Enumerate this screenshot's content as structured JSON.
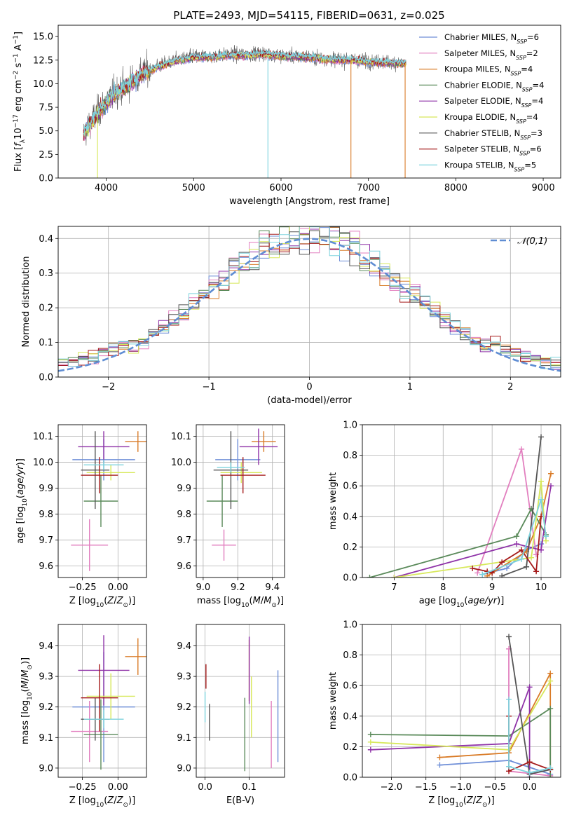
{
  "colors": [
    "#6f8fd8",
    "#e27fbf",
    "#d97b27",
    "#5a8a5a",
    "#8f33a8",
    "#d7e85a",
    "#555555",
    "#a51a1a",
    "#7dd3dd"
  ],
  "chart_data": [
    {
      "id": "spectrum",
      "type": "line",
      "title": "PLATE=2493, MJD=54115, FIBERID=0631, z=0.025",
      "xlabel": "wavelength [Angstrom, rest frame]",
      "ylabel": "Flux [f_λ 10^-17 erg cm^-2 s^-1 A^-1]",
      "xlim": [
        3450,
        9200
      ],
      "ylim": [
        0,
        16.2
      ],
      "xticks": [
        4000,
        5000,
        6000,
        7000,
        8000,
        9000
      ],
      "yticks": [
        0.0,
        2.5,
        5.0,
        7.5,
        10.0,
        12.5,
        15.0
      ],
      "legend_position": "top-right",
      "spectrum_range": [
        3740,
        7430
      ],
      "continuum_x": [
        3740,
        3800,
        3900,
        4000,
        4100,
        4200,
        4300,
        4400,
        4600,
        4800,
        5000,
        5200,
        5400,
        5600,
        5800,
        6000,
        6200,
        6400,
        6600,
        6800,
        7000,
        7200,
        7430
      ],
      "continuum_y": [
        4.5,
        5.5,
        6.8,
        8.0,
        9.0,
        9.5,
        10.2,
        11.0,
        11.8,
        12.4,
        12.8,
        12.8,
        13.0,
        13.0,
        13.1,
        12.9,
        12.8,
        12.7,
        12.5,
        12.5,
        12.3,
        12.2,
        12.1
      ],
      "series": [
        {
          "name": "Chabrier MILES, N_SSP=6"
        },
        {
          "name": "Salpeter MILES, N_SSP=2"
        },
        {
          "name": "Kroupa MILES, N_SSP=4"
        },
        {
          "name": "Chabrier ELODIE, N_SSP=4"
        },
        {
          "name": "Salpeter ELODIE, N_SSP=4"
        },
        {
          "name": "Kroupa ELODIE, N_SSP=4"
        },
        {
          "name": "Chabrier STELIB, N_SSP=3"
        },
        {
          "name": "Salpeter STELIB, N_SSP=6"
        },
        {
          "name": "Kroupa STELIB, N_SSP=5"
        }
      ],
      "legend_labels": [
        {
          "main": "Chabrier MILES, N",
          "sub": "SSP",
          "tail": "=6"
        },
        {
          "main": "Salpeter MILES, N",
          "sub": "SSP",
          "tail": "=2"
        },
        {
          "main": "Kroupa MILES, N",
          "sub": "SSP",
          "tail": "=4"
        },
        {
          "main": "Chabrier ELODIE, N",
          "sub": "SSP",
          "tail": "=4"
        },
        {
          "main": "Salpeter ELODIE, N",
          "sub": "SSP",
          "tail": "=4"
        },
        {
          "main": "Kroupa ELODIE, N",
          "sub": "SSP",
          "tail": "=4"
        },
        {
          "main": "Chabrier STELIB, N",
          "sub": "SSP",
          "tail": "=3"
        },
        {
          "main": "Salpeter STELIB, N",
          "sub": "SSP",
          "tail": "=6"
        },
        {
          "main": "Kroupa STELIB, N",
          "sub": "SSP",
          "tail": "=5"
        }
      ],
      "drops": [
        {
          "x": 5850,
          "series": 8
        },
        {
          "x": 6800,
          "series": 2
        },
        {
          "x": 7420,
          "series": 2
        },
        {
          "x": 3900,
          "series": 5
        }
      ]
    },
    {
      "id": "residuals",
      "type": "histogram",
      "xlabel": "(data-model)/error",
      "ylabel": "Normed distribution",
      "xlim": [
        -2.5,
        2.5
      ],
      "ylim": [
        0,
        0.435
      ],
      "xticks": [
        -2,
        -1,
        0,
        1,
        2
      ],
      "yticks": [
        0.0,
        0.1,
        0.2,
        0.3,
        0.4
      ],
      "grid": true,
      "bin_width": 0.1,
      "bin_start": -2.5,
      "reference_curve": {
        "name": "N(0,1)",
        "mean": 0,
        "sigma": 1,
        "style": "dashed"
      },
      "legend_label": "𝒩(0,1)",
      "legend_position": "top-right"
    },
    {
      "id": "age-vs-Z",
      "type": "errorbar",
      "xlabel": "Z [log10(Z/Z⊙)]",
      "ylabel": "age  [log10(age/yr)]",
      "xlim": [
        -0.42,
        0.2
      ],
      "ylim": [
        9.555,
        10.145
      ],
      "xticks": [
        -0.25,
        0.0
      ],
      "xticklabels": [
        "−0.25",
        "0.00"
      ],
      "yticks": [
        9.6,
        9.7,
        9.8,
        9.9,
        10.0,
        10.1
      ],
      "grid": true,
      "points": [
        {
          "x": -0.1,
          "xerr": 0.22,
          "y": 10.01,
          "yerr": 0.08,
          "series": 0
        },
        {
          "x": -0.2,
          "xerr": 0.13,
          "y": 9.68,
          "yerr": 0.1,
          "series": 1
        },
        {
          "x": 0.14,
          "xerr": 0.09,
          "y": 10.08,
          "yerr": 0.04,
          "series": 2
        },
        {
          "x": -0.12,
          "xerr": 0.12,
          "y": 9.85,
          "yerr": 0.1,
          "series": 3
        },
        {
          "x": -0.1,
          "xerr": 0.18,
          "y": 10.06,
          "yerr": 0.06,
          "series": 4
        },
        {
          "x": -0.05,
          "xerr": 0.17,
          "y": 9.96,
          "yerr": 0.03,
          "series": 5
        },
        {
          "x": -0.16,
          "xerr": 0.1,
          "y": 9.97,
          "yerr": 0.15,
          "series": 6
        },
        {
          "x": -0.13,
          "xerr": 0.13,
          "y": 9.95,
          "yerr": 0.07,
          "series": 7
        },
        {
          "x": -0.1,
          "xerr": 0.14,
          "y": 9.99,
          "yerr": 0.02,
          "series": 8
        }
      ]
    },
    {
      "id": "age-vs-mass",
      "type": "errorbar",
      "xlabel": "mass [log10(M/M⊙)]",
      "xlim": [
        8.96,
        9.47
      ],
      "ylim": [
        9.555,
        10.145
      ],
      "xticks": [
        9.0,
        9.2,
        9.4
      ],
      "xticklabels": [
        "9.0",
        "9.2",
        "9.4"
      ],
      "yticks": [
        9.6,
        9.7,
        9.8,
        9.9,
        10.0,
        10.1
      ],
      "grid": true,
      "points": [
        {
          "x": 9.2,
          "xerr": 0.13,
          "y": 10.01,
          "yerr": 0.08,
          "series": 0
        },
        {
          "x": 9.12,
          "xerr": 0.07,
          "y": 9.68,
          "yerr": 0.06,
          "series": 1
        },
        {
          "x": 9.35,
          "xerr": 0.07,
          "y": 10.08,
          "yerr": 0.04,
          "series": 2
        },
        {
          "x": 9.11,
          "xerr": 0.09,
          "y": 9.85,
          "yerr": 0.1,
          "series": 3
        },
        {
          "x": 9.32,
          "xerr": 0.11,
          "y": 10.06,
          "yerr": 0.07,
          "series": 4
        },
        {
          "x": 9.22,
          "xerr": 0.12,
          "y": 9.96,
          "yerr": 0.04,
          "series": 5
        },
        {
          "x": 9.16,
          "xerr": 0.1,
          "y": 9.97,
          "yerr": 0.15,
          "series": 6
        },
        {
          "x": 9.23,
          "xerr": 0.13,
          "y": 9.95,
          "yerr": 0.07,
          "series": 7
        },
        {
          "x": 9.16,
          "xerr": 0.08,
          "y": 9.98,
          "yerr": 0.02,
          "series": 8
        }
      ]
    },
    {
      "id": "mass-weight-vs-age",
      "type": "line",
      "xlabel": "age  [log10(age/yr)]",
      "ylabel": "mass weight",
      "xlim": [
        6.35,
        10.4
      ],
      "ylim": [
        0,
        1
      ],
      "xticks": [
        7,
        8,
        9,
        10
      ],
      "yticks": [
        0.0,
        0.2,
        0.4,
        0.6,
        0.8,
        1.0
      ],
      "grid": true,
      "series": [
        {
          "x": [
            8.8,
            9.3,
            9.7,
            10.0
          ],
          "y": [
            0.02,
            0.06,
            0.18,
            0.22
          ],
          "series": 0
        },
        {
          "x": [
            8.7,
            9.6,
            9.9
          ],
          "y": [
            0.03,
            0.84,
            0.15
          ],
          "series": 1
        },
        {
          "x": [
            8.9,
            9.7,
            10.0,
            10.2
          ],
          "y": [
            0.01,
            0.17,
            0.4,
            0.68
          ],
          "series": 2
        },
        {
          "x": [
            6.5,
            9.5,
            9.8,
            10.1
          ],
          "y": [
            0.0,
            0.27,
            0.45,
            0.28
          ],
          "series": 3
        },
        {
          "x": [
            7.0,
            9.5,
            10.0,
            10.2
          ],
          "y": [
            0.0,
            0.22,
            0.18,
            0.6
          ],
          "series": 4
        },
        {
          "x": [
            7.0,
            9.8,
            10.0,
            10.1
          ],
          "y": [
            0.0,
            0.13,
            0.63,
            0.24
          ],
          "series": 5
        },
        {
          "x": [
            9.2,
            9.7,
            10.0
          ],
          "y": [
            0.01,
            0.07,
            0.92
          ],
          "series": 6
        },
        {
          "x": [
            8.6,
            8.9,
            9.0,
            9.2,
            9.6,
            9.9,
            10.0
          ],
          "y": [
            0.06,
            0.04,
            0.03,
            0.1,
            0.18,
            0.04,
            0.4
          ],
          "series": 7
        },
        {
          "x": [
            8.8,
            9.6,
            10.0,
            10.1
          ],
          "y": [
            0.02,
            0.12,
            0.51,
            0.27
          ],
          "series": 8
        }
      ]
    },
    {
      "id": "mass-vs-Z",
      "type": "errorbar",
      "xlabel": "Z [log10(Z/Z⊙)]",
      "ylabel": "mass [log10(M/M⊙)]",
      "xlim": [
        -0.42,
        0.2
      ],
      "ylim": [
        8.97,
        9.47
      ],
      "xticks": [
        -0.25,
        0.0
      ],
      "xticklabels": [
        "−0.25",
        "0.00"
      ],
      "yticks": [
        9.0,
        9.1,
        9.2,
        9.3,
        9.4
      ],
      "grid": true,
      "points": [
        {
          "x": -0.1,
          "xerr": 0.22,
          "y": 9.2,
          "yerr": 0.18,
          "series": 0
        },
        {
          "x": -0.2,
          "xerr": 0.13,
          "y": 9.12,
          "yerr": 0.1,
          "series": 1
        },
        {
          "x": 0.14,
          "xerr": 0.09,
          "y": 9.365,
          "yerr": 0.06,
          "series": 2
        },
        {
          "x": -0.12,
          "xerr": 0.12,
          "y": 9.11,
          "yerr": 0.115,
          "series": 3
        },
        {
          "x": -0.1,
          "xerr": 0.18,
          "y": 9.32,
          "yerr": 0.115,
          "series": 4
        },
        {
          "x": -0.05,
          "xerr": 0.17,
          "y": 9.235,
          "yerr": 0.075,
          "series": 5
        },
        {
          "x": -0.16,
          "xerr": 0.1,
          "y": 9.16,
          "yerr": 0.07,
          "series": 6
        },
        {
          "x": -0.13,
          "xerr": 0.13,
          "y": 9.23,
          "yerr": 0.11,
          "series": 7
        },
        {
          "x": -0.1,
          "xerr": 0.14,
          "y": 9.16,
          "yerr": 0.03,
          "series": 8
        }
      ]
    },
    {
      "id": "mass-vs-EBV",
      "type": "errorbar",
      "xlabel": "E(B-V)",
      "xlim": [
        -0.02,
        0.18
      ],
      "ylim": [
        8.97,
        9.47
      ],
      "xticks": [
        0.0,
        0.1
      ],
      "xticklabels": [
        "0.0",
        "0.1"
      ],
      "yticks": [
        9.0,
        9.1,
        9.2,
        9.3,
        9.4
      ],
      "grid": true,
      "points": [
        {
          "x": 0.165,
          "xerr": 0,
          "y": 9.17,
          "yerr": 0.15,
          "series": 0
        },
        {
          "x": 0.15,
          "xerr": 0,
          "y": 9.11,
          "yerr": 0.11,
          "series": 1
        },
        {
          "x": 0.1,
          "xerr": 0,
          "y": 9.32,
          "yerr": 0.1,
          "series": 2
        },
        {
          "x": 0.09,
          "xerr": 0,
          "y": 9.11,
          "yerr": 0.12,
          "series": 3
        },
        {
          "x": 0.1,
          "xerr": 0,
          "y": 9.32,
          "yerr": 0.11,
          "series": 4
        },
        {
          "x": 0.105,
          "xerr": 0,
          "y": 9.2,
          "yerr": 0.1,
          "series": 5
        },
        {
          "x": 0.01,
          "xerr": 0,
          "y": 9.15,
          "yerr": 0.06,
          "series": 6
        },
        {
          "x": 0.002,
          "xerr": 0,
          "y": 9.3,
          "yerr": 0.04,
          "series": 7
        },
        {
          "x": 0.0,
          "xerr": 0,
          "y": 9.2,
          "yerr": 0.05,
          "series": 8
        }
      ]
    },
    {
      "id": "mass-weight-vs-Z",
      "type": "line",
      "xlabel": "Z [log10(Z/Z⊙)]",
      "ylabel": "mass weight",
      "xlim": [
        -2.42,
        0.45
      ],
      "ylim": [
        0,
        1
      ],
      "xticks": [
        -2.0,
        -1.5,
        -1.0,
        -0.5,
        0.0
      ],
      "xticklabels": [
        "−2.0",
        "−1.5",
        "−1.0",
        "−0.5",
        "0.0"
      ],
      "yticks": [
        0.0,
        0.2,
        0.4,
        0.6,
        0.8,
        1.0
      ],
      "grid": true,
      "series": [
        {
          "x": [
            -1.3,
            -0.3,
            0.3
          ],
          "y": [
            0.08,
            0.11,
            0.02
          ],
          "series": 0
        },
        {
          "x": [
            -0.3,
            -0.3,
            0.3
          ],
          "y": [
            0.84,
            0.04,
            0.01
          ],
          "series": 1
        },
        {
          "x": [
            -1.3,
            -0.3,
            0.3,
            0.3
          ],
          "y": [
            0.13,
            0.16,
            0.68,
            0.05
          ],
          "series": 2
        },
        {
          "x": [
            -2.3,
            -0.3,
            0.3,
            0.3
          ],
          "y": [
            0.28,
            0.27,
            0.45,
            0.0
          ],
          "series": 3
        },
        {
          "x": [
            -2.3,
            -0.3,
            0.0,
            0.0
          ],
          "y": [
            0.18,
            0.22,
            0.59,
            0.0
          ],
          "series": 4
        },
        {
          "x": [
            -2.3,
            -0.3,
            0.3
          ],
          "y": [
            0.23,
            0.18,
            0.63
          ],
          "series": 5
        },
        {
          "x": [
            -0.3,
            0.0,
            0.3
          ],
          "y": [
            0.92,
            0.02,
            0.05
          ],
          "series": 6
        },
        {
          "x": [
            -0.3,
            -0.3,
            0.0,
            0.3
          ],
          "y": [
            0.4,
            0.04,
            0.1,
            0.05
          ],
          "series": 7
        },
        {
          "x": [
            -0.3,
            -0.3,
            0.0,
            0.3
          ],
          "y": [
            0.51,
            0.07,
            0.03,
            0.06
          ],
          "series": 8
        }
      ]
    }
  ]
}
